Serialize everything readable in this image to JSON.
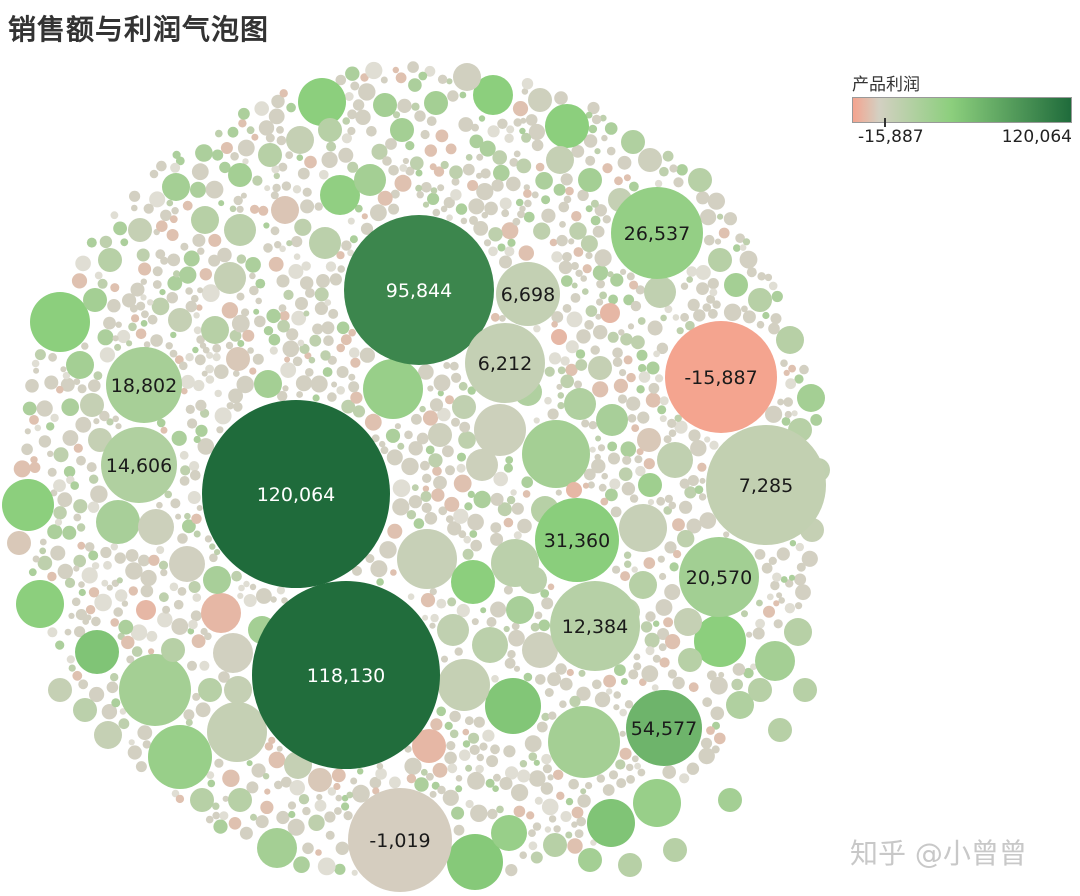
{
  "title": "销售额与利润气泡图",
  "legend": {
    "title": "产品利润",
    "min_label": "-15,887",
    "max_label": "120,064"
  },
  "colors": {
    "neg": "#f4a48f",
    "zero": "#d3d0c2",
    "mid": "#8ccf7d",
    "pos": "#1f6b3b"
  },
  "watermark": "知乎 @小曾曾",
  "chart_data": {
    "type": "bubble",
    "title": "销售额与利润气泡图",
    "size_encoding": "销售额",
    "color_encoding": "产品利润",
    "color_range": [
      -15887,
      120064
    ],
    "labeled_bubbles": [
      {
        "label": "120,064",
        "profit": 120064
      },
      {
        "label": "118,130",
        "profit": 118130
      },
      {
        "label": "95,844",
        "profit": 95844
      },
      {
        "label": "54,577",
        "profit": 54577
      },
      {
        "label": "31,360",
        "profit": 31360
      },
      {
        "label": "26,537",
        "profit": 26537
      },
      {
        "label": "20,570",
        "profit": 20570
      },
      {
        "label": "18,802",
        "profit": 18802
      },
      {
        "label": "14,606",
        "profit": 14606
      },
      {
        "label": "12,384",
        "profit": 12384
      },
      {
        "label": "7,285",
        "profit": 7285
      },
      {
        "label": "6,698",
        "profit": 6698
      },
      {
        "label": "6,212",
        "profit": 6212
      },
      {
        "label": "-1,019",
        "profit": -1019
      },
      {
        "label": "-15,887",
        "profit": -15887
      }
    ]
  }
}
